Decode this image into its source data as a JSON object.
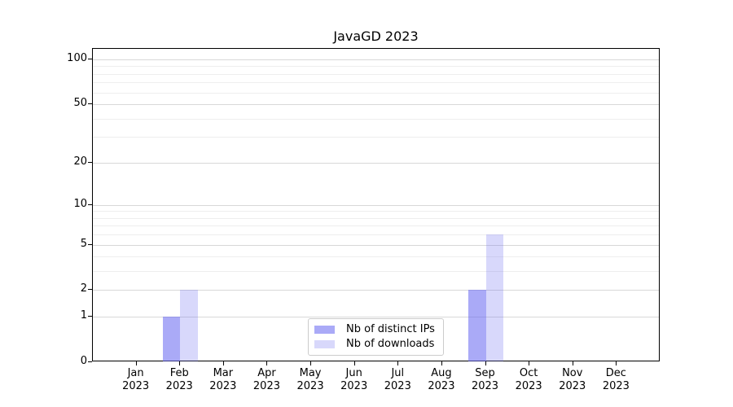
{
  "figure": {
    "background": "#ffffff"
  },
  "chart_data": {
    "type": "bar",
    "title": "JavaGD 2023",
    "xlabel": "",
    "ylabel": "",
    "x_months": [
      "Jan",
      "Feb",
      "Mar",
      "Apr",
      "May",
      "Jun",
      "Jul",
      "Aug",
      "Sep",
      "Oct",
      "Nov",
      "Dec"
    ],
    "x_year": "2023",
    "series": [
      {
        "name": "Nb of distinct IPs",
        "key": "distinct-ips",
        "color": "#6464F08C",
        "values": [
          0,
          1,
          0,
          0,
          0,
          0,
          0,
          0,
          2,
          0,
          0,
          0
        ]
      },
      {
        "name": "Nb of downloads",
        "key": "downloads",
        "color": "#6464F040",
        "values": [
          0,
          2,
          0,
          0,
          0,
          0,
          0,
          0,
          6,
          0,
          0,
          0
        ]
      }
    ],
    "yscale": "log10(1+x)",
    "ylim": [
      0,
      101
    ],
    "y_tick_values": [
      0,
      1,
      2,
      5,
      10,
      20,
      50,
      100
    ],
    "y_tick_labels": [
      "0",
      "1",
      "2",
      "5",
      "10",
      "20",
      "50",
      "100"
    ],
    "y_minor_gridlines": [
      3,
      4,
      6,
      7,
      8,
      9,
      30,
      40,
      60,
      70,
      80,
      90
    ],
    "grid": true,
    "legend_position": "lower-center-inside",
    "colors": {
      "major_grid": "#d8d8d8",
      "minor_grid": "#eeeeee",
      "axis": "#000000",
      "text": "#000000"
    }
  }
}
